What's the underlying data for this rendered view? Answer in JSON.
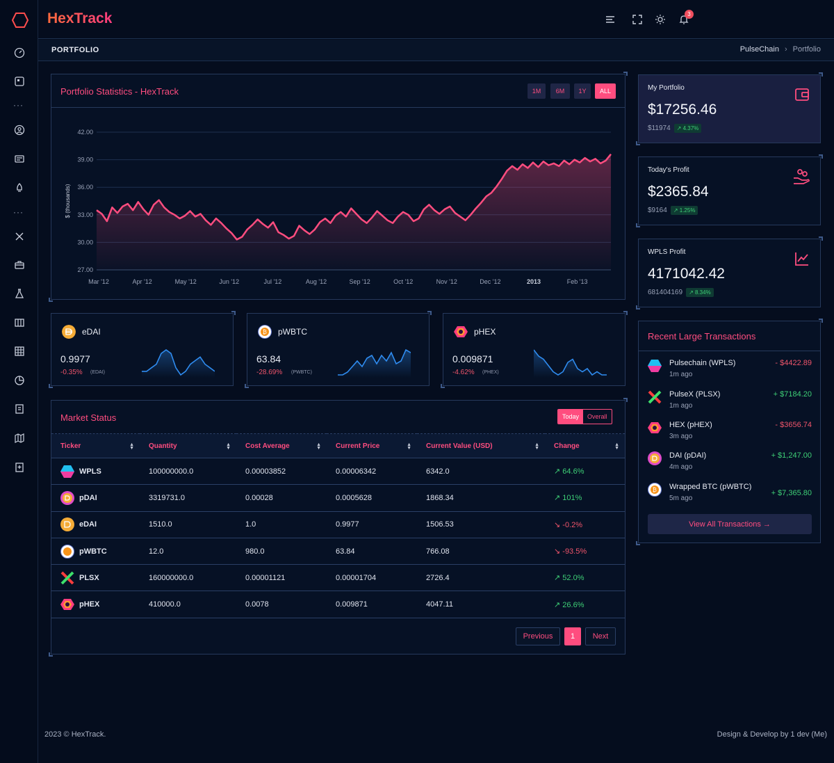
{
  "app": {
    "brand": "HexTrack",
    "notification_count": "3"
  },
  "page": {
    "title": "PORTFOLIO",
    "breadcrumb": [
      "PulseChain",
      "Portfolio"
    ]
  },
  "portfolio_chart": {
    "title": "Portfolio Statistics - HexTrack",
    "ranges": [
      "1M",
      "6M",
      "1Y",
      "ALL"
    ],
    "active_range": "ALL",
    "accent": "#ff4d7f"
  },
  "chart_data": {
    "type": "area",
    "title": "Portfolio Statistics - HexTrack",
    "ylabel": "$ (thousands)",
    "xlabel": "",
    "ylim": [
      27,
      42
    ],
    "yticks": [
      "42.00",
      "39.00",
      "36.00",
      "33.00",
      "30.00",
      "27.00"
    ],
    "xticks": [
      "Mar '12",
      "Apr '12",
      "May '12",
      "Jun '12",
      "Jul '12",
      "Aug '12",
      "Sep '12",
      "Oct '12",
      "Nov '12",
      "Dec '12",
      "2013",
      "Feb '13"
    ],
    "series": [
      {
        "name": "Portfolio",
        "values": [
          33.5,
          33.1,
          32.3,
          33.8,
          33.2,
          33.9,
          34.2,
          33.5,
          34.4,
          33.6,
          33.0,
          34.1,
          34.6,
          33.8,
          33.3,
          33.0,
          32.6,
          32.9,
          33.4,
          32.8,
          33.1,
          32.4,
          31.9,
          32.6,
          32.1,
          31.5,
          31.0,
          30.3,
          30.6,
          31.4,
          31.9,
          32.5,
          32.0,
          31.6,
          32.2,
          31.1,
          30.8,
          30.4,
          30.7,
          31.8,
          31.3,
          30.9,
          31.4,
          32.2,
          32.6,
          32.1,
          32.9,
          33.3,
          32.8,
          33.7,
          33.1,
          32.5,
          32.1,
          32.7,
          33.4,
          32.9,
          32.4,
          32.1,
          32.8,
          33.3,
          33.0,
          32.3,
          32.6,
          33.6,
          34.1,
          33.5,
          33.1,
          33.6,
          33.9,
          33.2,
          32.8,
          32.4,
          33.0,
          33.7,
          34.3,
          35.0,
          35.4,
          36.1,
          36.9,
          37.8,
          38.3,
          37.9,
          38.5,
          38.1,
          38.7,
          38.2,
          38.8,
          38.4,
          38.6,
          38.3,
          38.9,
          38.5,
          39.0,
          38.7,
          39.2,
          38.8,
          39.1,
          38.6,
          38.9,
          39.6
        ]
      }
    ]
  },
  "coins": [
    {
      "symbol": "eDAI",
      "price": "0.9977",
      "change": "-0.35%",
      "ticker": "(EDAI)",
      "spark": [
        3,
        3,
        4,
        5,
        8,
        9,
        8,
        4,
        2,
        3,
        5,
        6,
        7,
        5,
        4,
        3
      ],
      "color": "#2f8cf0"
    },
    {
      "symbol": "pWBTC",
      "price": "63.84",
      "change": "-28.69%",
      "ticker": "(PWBTC)",
      "spark": [
        1,
        1,
        2,
        4,
        6,
        4,
        7,
        8,
        5,
        8,
        6,
        9,
        5,
        6,
        10,
        9
      ],
      "color": "#2f8cf0"
    },
    {
      "symbol": "pHEX",
      "price": "0.009871",
      "change": "-4.62%",
      "ticker": "(PHEX)",
      "spark": [
        9,
        7,
        6,
        4,
        2,
        1,
        2,
        5,
        6,
        3,
        2,
        3,
        1,
        2,
        1,
        1
      ],
      "color": "#2f8cf0"
    }
  ],
  "market": {
    "title": "Market Status",
    "toggle": [
      "Today",
      "Overall"
    ],
    "columns": [
      "Ticker",
      "Quantity",
      "Cost Average",
      "Current Price",
      "Current Value (USD)",
      "Change"
    ],
    "rows": [
      {
        "ticker": "WPLS",
        "quantity": "100000000.0",
        "cost": "0.00003852",
        "price": "0.00006342",
        "value": "6342.0",
        "change": "64.6%",
        "dir": "up"
      },
      {
        "ticker": "pDAI",
        "quantity": "3319731.0",
        "cost": "0.00028",
        "price": "0.0005628",
        "value": "1868.34",
        "change": "101%",
        "dir": "up"
      },
      {
        "ticker": "eDAI",
        "quantity": "1510.0",
        "cost": "1.0",
        "price": "0.9977",
        "value": "1506.53",
        "change": "-0.2%",
        "dir": "dn"
      },
      {
        "ticker": "pWBTC",
        "quantity": "12.0",
        "cost": "980.0",
        "price": "63.84",
        "value": "766.08",
        "change": "-93.5%",
        "dir": "dn"
      },
      {
        "ticker": "PLSX",
        "quantity": "160000000.0",
        "cost": "0.00001121",
        "price": "0.00001704",
        "value": "2726.4",
        "change": "52.0%",
        "dir": "up"
      },
      {
        "ticker": "pHEX",
        "quantity": "410000.0",
        "cost": "0.0078",
        "price": "0.009871",
        "value": "4047.11",
        "change": "26.6%",
        "dir": "up"
      }
    ],
    "pagination": {
      "prev": "Previous",
      "page": "1",
      "next": "Next"
    }
  },
  "stats": [
    {
      "label": "My Portfolio",
      "value": "$17256.46",
      "sub": "$11974",
      "pct": "4.37%"
    },
    {
      "label": "Today's Profit",
      "value": "$2365.84",
      "sub": "$9164",
      "pct": "1.25%"
    },
    {
      "label": "WPLS Profit",
      "value": "4171042.42",
      "sub": "681404169",
      "pct": "8.34%"
    }
  ],
  "transactions": {
    "title": "Recent Large Transactions",
    "items": [
      {
        "name": "Pulsechain (WPLS)",
        "time": "1m ago",
        "amount": "- $4422.89",
        "dir": "dn"
      },
      {
        "name": "PulseX (PLSX)",
        "time": "1m ago",
        "amount": "+ $7184.20",
        "dir": "up"
      },
      {
        "name": "HEX (pHEX)",
        "time": "3m ago",
        "amount": "- $3656.74",
        "dir": "dn"
      },
      {
        "name": "DAI (pDAI)",
        "time": "4m ago",
        "amount": "+ $1,247.00",
        "dir": "up"
      },
      {
        "name": "Wrapped BTC (pWBTC)",
        "time": "5m ago",
        "amount": "+ $7,365.80",
        "dir": "up"
      }
    ],
    "view_all": "View All Transactions →"
  },
  "footer": {
    "left": "2023 © HexTrack.",
    "right": "Design & Develop by 1 dev (Me)"
  }
}
